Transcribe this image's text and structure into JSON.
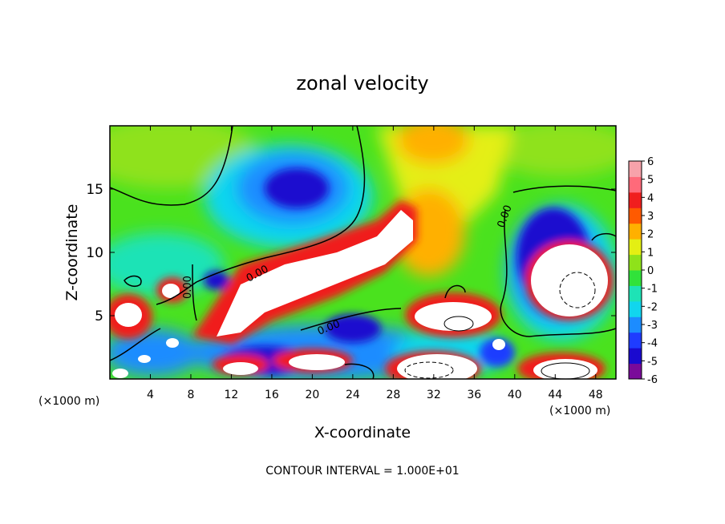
{
  "chart_data": {
    "type": "heatmap",
    "title": "zonal velocity",
    "xlabel": "X-coordinate",
    "ylabel": "Z-coordinate",
    "x_unit": "(×1000 m)",
    "y_unit": "(×1000 m)",
    "xlim": [
      0,
      50
    ],
    "ylim": [
      0,
      20
    ],
    "x_ticks": [
      4,
      8,
      12,
      16,
      20,
      24,
      28,
      32,
      36,
      40,
      44,
      48
    ],
    "y_ticks": [
      5,
      10,
      15
    ],
    "colorbar": {
      "min": -6,
      "max": 6,
      "ticks": [
        6,
        5,
        4,
        3,
        2,
        1,
        0,
        -1,
        -2,
        -3,
        -4,
        -5,
        -6
      ],
      "colors": [
        "#7a0a9a",
        "#1a0acf",
        "#1f3cff",
        "#1c8cff",
        "#11d6ee",
        "#1ee3b6",
        "#31e23a",
        "#8fe21a",
        "#e4ef13",
        "#ffb000",
        "#ff5a00",
        "#f01e1e",
        "#ff6a7a",
        "#f7a2aa"
      ]
    },
    "contour_interval_text": "CONTOUR INTERVAL = 1.000E+01",
    "contour_labels": [
      "0.00",
      "0.00",
      "0.00",
      "0.00"
    ],
    "features": [
      {
        "kind": "jet",
        "sign": "positive",
        "x": 22,
        "z": 8.2,
        "value": 7
      },
      {
        "kind": "core",
        "sign": "negative",
        "x": 19.5,
        "z": 14.5,
        "value": -5
      },
      {
        "kind": "core",
        "sign": "negative",
        "x": 43.5,
        "z": 9,
        "value": -5
      },
      {
        "kind": "core",
        "sign": "positive",
        "x": 45,
        "z": 8,
        "value": 7
      },
      {
        "kind": "core",
        "sign": "positive",
        "x": 33.5,
        "z": 5,
        "value": 7
      },
      {
        "kind": "core",
        "sign": "positive",
        "x": 29.5,
        "z": 18.5,
        "value": 3
      }
    ]
  }
}
